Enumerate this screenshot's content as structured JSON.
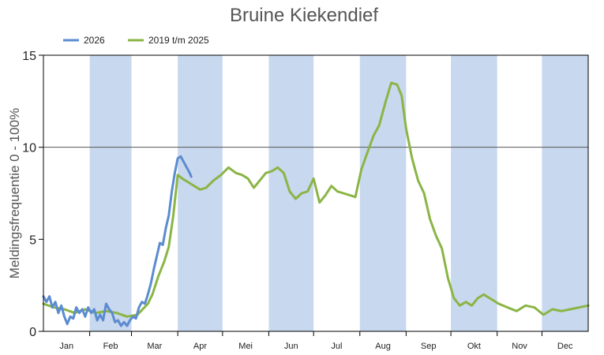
{
  "chart_data": {
    "type": "line",
    "title": "Bruine Kiekendief",
    "ylabel": "Meldingsfrequentie 0 - 100%",
    "xlabel": "",
    "ylim": [
      0,
      15
    ],
    "yticks": [
      0,
      5,
      10,
      15
    ],
    "grid": "horizontal line at 10",
    "legend_position": "top-left",
    "month_labels": [
      "Jan",
      "Feb",
      "Mar",
      "Apr",
      "Mei",
      "Jun",
      "Jul",
      "Aug",
      "Sep",
      "Okt",
      "Nov",
      "Dec"
    ],
    "shaded_months": [
      "Feb",
      "Apr",
      "Jun",
      "Aug",
      "Okt",
      "Dec"
    ],
    "colors": {
      "band": "#c8d8ee",
      "frame": "#000000"
    },
    "x_unit": "day of year",
    "xlim": [
      1,
      366
    ],
    "series": [
      {
        "name": "2026",
        "color": "#5b8bd0",
        "x": [
          1,
          3,
          5,
          7,
          9,
          11,
          13,
          15,
          17,
          19,
          21,
          23,
          25,
          27,
          29,
          31,
          33,
          35,
          37,
          39,
          41,
          43,
          45,
          47,
          49,
          51,
          53,
          55,
          57,
          59,
          61,
          63,
          65,
          67,
          69,
          71,
          73,
          75,
          77,
          79,
          81,
          83,
          85,
          87,
          89,
          91,
          93,
          95,
          97,
          99,
          100
        ],
        "values": [
          1.9,
          1.6,
          1.9,
          1.3,
          1.6,
          1.0,
          1.4,
          0.8,
          0.4,
          0.8,
          0.7,
          1.3,
          1.0,
          1.2,
          0.8,
          1.3,
          1.0,
          1.2,
          0.6,
          0.9,
          0.6,
          1.5,
          1.2,
          1.0,
          0.5,
          0.6,
          0.3,
          0.5,
          0.3,
          0.6,
          0.8,
          0.7,
          1.3,
          1.6,
          1.5,
          2.0,
          2.6,
          3.4,
          4.1,
          4.8,
          4.7,
          5.6,
          6.3,
          7.6,
          8.6,
          9.4,
          9.5,
          9.2,
          8.9,
          8.6,
          8.4
        ]
      },
      {
        "name": "2019 t/m 2025",
        "color": "#8ab545",
        "x": [
          1,
          8,
          15,
          22,
          29,
          36,
          43,
          50,
          57,
          64,
          71,
          74,
          78,
          82,
          85,
          88,
          91,
          94,
          98,
          102,
          106,
          110,
          115,
          120,
          125,
          130,
          134,
          138,
          142,
          146,
          150,
          154,
          158,
          162,
          166,
          170,
          174,
          178,
          182,
          186,
          190,
          194,
          198,
          202,
          206,
          210,
          214,
          218,
          222,
          226,
          230,
          234,
          238,
          241,
          244,
          248,
          252,
          256,
          260,
          264,
          268,
          272,
          276,
          280,
          284,
          288,
          292,
          296,
          300,
          306,
          312,
          318,
          324,
          330,
          336,
          342,
          348,
          354,
          360,
          366
        ],
        "values": [
          1.5,
          1.3,
          1.2,
          1.0,
          1.2,
          1.0,
          1.1,
          1.0,
          0.8,
          0.9,
          1.5,
          2.0,
          3.0,
          3.8,
          4.6,
          6.3,
          8.5,
          8.3,
          8.1,
          7.9,
          7.7,
          7.8,
          8.2,
          8.5,
          8.9,
          8.6,
          8.5,
          8.3,
          7.8,
          8.2,
          8.6,
          8.7,
          8.9,
          8.6,
          7.6,
          7.2,
          7.5,
          7.6,
          8.3,
          7.0,
          7.4,
          7.9,
          7.6,
          7.5,
          7.4,
          7.3,
          8.8,
          9.7,
          10.6,
          11.2,
          12.4,
          13.5,
          13.4,
          12.8,
          11.0,
          9.4,
          8.2,
          7.5,
          6.1,
          5.2,
          4.5,
          2.9,
          1.8,
          1.4,
          1.6,
          1.4,
          1.8,
          2.0,
          1.8,
          1.5,
          1.3,
          1.1,
          1.4,
          1.3,
          0.9,
          1.2,
          1.1,
          1.2,
          1.3,
          1.4
        ]
      }
    ]
  }
}
